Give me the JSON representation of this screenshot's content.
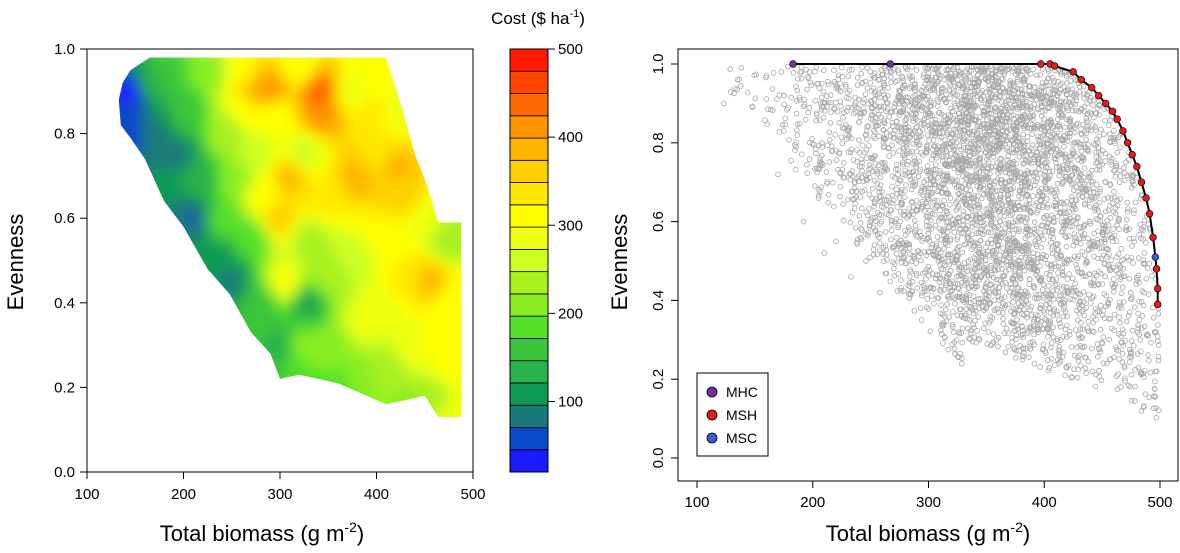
{
  "chart_data": [
    {
      "type": "heatmap",
      "xlabel": "Total biomass (g m",
      "xlabel_sup": "-2",
      "xlabel_end": ")",
      "ylabel": "Evenness",
      "xlim": [
        100,
        500
      ],
      "ylim": [
        0,
        1
      ],
      "xticks": [
        "100",
        "200",
        "300",
        "400",
        "500"
      ],
      "yticks": [
        "0.0",
        "0.2",
        "0.4",
        "0.6",
        "0.8",
        "1.0"
      ],
      "colorbar": {
        "title": "Cost ($ ha",
        "title_sup": "-1",
        "title_end": ")",
        "min": 20,
        "max": 500,
        "ticks": [
          "100",
          "200",
          "300",
          "400",
          "500"
        ],
        "tick_values": [
          100,
          200,
          300,
          400,
          500
        ],
        "bins": 19,
        "palette": [
          "#1a1aff",
          "#0a4ac8",
          "#1a7a7a",
          "#119a55",
          "#2ab14a",
          "#3ac63a",
          "#55e02a",
          "#88ee22",
          "#a8f020",
          "#ccff22",
          "#eeff11",
          "#ffff00",
          "#ffe800",
          "#ffd000",
          "#ffb400",
          "#ff9400",
          "#ff6a00",
          "#ff4400",
          "#ff1a00"
        ]
      },
      "region_boundary": [
        [
          137,
          0.92
        ],
        [
          145,
          0.95
        ],
        [
          165,
          0.98
        ],
        [
          410,
          0.98
        ],
        [
          425,
          0.87
        ],
        [
          440,
          0.75
        ],
        [
          452,
          0.68
        ],
        [
          464,
          0.59
        ],
        [
          488,
          0.59
        ],
        [
          488,
          0.13
        ],
        [
          464,
          0.13
        ],
        [
          450,
          0.18
        ],
        [
          410,
          0.16
        ],
        [
          390,
          0.18
        ],
        [
          360,
          0.21
        ],
        [
          320,
          0.23
        ],
        [
          300,
          0.22
        ],
        [
          290,
          0.28
        ],
        [
          270,
          0.33
        ],
        [
          248,
          0.42
        ],
        [
          225,
          0.48
        ],
        [
          200,
          0.58
        ],
        [
          180,
          0.64
        ],
        [
          160,
          0.74
        ],
        [
          145,
          0.79
        ],
        [
          135,
          0.82
        ],
        [
          133,
          0.88
        ]
      ],
      "cost_points": [
        [
          145,
          0.9,
          40
        ],
        [
          150,
          0.8,
          60
        ],
        [
          170,
          0.8,
          90
        ],
        [
          165,
          0.92,
          130
        ],
        [
          185,
          0.95,
          170
        ],
        [
          195,
          0.75,
          90
        ],
        [
          210,
          0.6,
          70
        ],
        [
          205,
          0.85,
          160
        ],
        [
          225,
          0.95,
          210
        ],
        [
          220,
          0.7,
          140
        ],
        [
          235,
          0.5,
          100
        ],
        [
          250,
          0.45,
          90
        ],
        [
          240,
          0.6,
          180
        ],
        [
          245,
          0.8,
          230
        ],
        [
          260,
          0.95,
          320
        ],
        [
          255,
          0.7,
          220
        ],
        [
          275,
          0.9,
          380
        ],
        [
          270,
          0.55,
          180
        ],
        [
          280,
          0.4,
          160
        ],
        [
          275,
          0.75,
          260
        ],
        [
          295,
          0.85,
          300
        ],
        [
          300,
          0.6,
          360
        ],
        [
          305,
          0.45,
          300
        ],
        [
          300,
          0.3,
          140
        ],
        [
          285,
          0.65,
          320
        ],
        [
          320,
          0.95,
          300
        ],
        [
          325,
          0.75,
          260
        ],
        [
          330,
          0.55,
          240
        ],
        [
          330,
          0.4,
          120
        ],
        [
          320,
          0.3,
          200
        ],
        [
          345,
          0.85,
          420
        ],
        [
          345,
          0.65,
          330
        ],
        [
          350,
          0.45,
          230
        ],
        [
          355,
          0.3,
          210
        ],
        [
          360,
          0.2,
          180
        ],
        [
          375,
          0.9,
          280
        ],
        [
          380,
          0.7,
          380
        ],
        [
          375,
          0.5,
          250
        ],
        [
          385,
          0.35,
          280
        ],
        [
          380,
          0.22,
          200
        ],
        [
          400,
          0.95,
          300
        ],
        [
          400,
          0.75,
          340
        ],
        [
          410,
          0.55,
          320
        ],
        [
          405,
          0.4,
          290
        ],
        [
          410,
          0.25,
          240
        ],
        [
          425,
          0.85,
          280
        ],
        [
          430,
          0.65,
          360
        ],
        [
          430,
          0.45,
          330
        ],
        [
          435,
          0.3,
          280
        ],
        [
          430,
          0.17,
          220
        ],
        [
          450,
          0.6,
          280
        ],
        [
          455,
          0.45,
          380
        ],
        [
          455,
          0.3,
          300
        ],
        [
          460,
          0.18,
          240
        ],
        [
          475,
          0.55,
          230
        ],
        [
          478,
          0.4,
          300
        ],
        [
          480,
          0.25,
          320
        ],
        [
          485,
          0.15,
          290
        ],
        [
          420,
          0.72,
          380
        ],
        [
          340,
          0.9,
          450
        ],
        [
          290,
          0.9,
          420
        ],
        [
          395,
          0.85,
          330
        ],
        [
          265,
          0.85,
          310
        ],
        [
          310,
          0.7,
          380
        ]
      ]
    },
    {
      "type": "scatter",
      "xlabel": "Total biomass (g m",
      "xlabel_sup": "-2",
      "xlabel_end": ")",
      "ylabel": "Evenness",
      "xlim": [
        100,
        500
      ],
      "ylim": [
        0,
        1
      ],
      "xticks": [
        "100",
        "200",
        "300",
        "400",
        "500"
      ],
      "yticks": [
        "0.0",
        "0.2",
        "0.4",
        "0.6",
        "0.8",
        "1.0"
      ],
      "cloud_color": "#a6a6a6",
      "frontier": [
        [
          183,
          1.0
        ],
        [
          267,
          1.0
        ],
        [
          397,
          1.0
        ],
        [
          405,
          1.0
        ],
        [
          409,
          0.995
        ],
        [
          425,
          0.98
        ],
        [
          432,
          0.96
        ],
        [
          441,
          0.94
        ],
        [
          447,
          0.92
        ],
        [
          453,
          0.9
        ],
        [
          459,
          0.88
        ],
        [
          463,
          0.86
        ],
        [
          468,
          0.83
        ],
        [
          472,
          0.8
        ],
        [
          476,
          0.77
        ],
        [
          480,
          0.74
        ],
        [
          484,
          0.7
        ],
        [
          488,
          0.66
        ],
        [
          491,
          0.62
        ],
        [
          494,
          0.56
        ],
        [
          496,
          0.51
        ],
        [
          497,
          0.48
        ],
        [
          498,
          0.43
        ],
        [
          498,
          0.39
        ]
      ],
      "mhc_points": [
        [
          183,
          1.0
        ],
        [
          267,
          1.0
        ]
      ],
      "msh_points": [
        [
          397,
          1.0
        ],
        [
          405,
          1.0
        ],
        [
          409,
          0.995
        ],
        [
          425,
          0.98
        ],
        [
          432,
          0.96
        ],
        [
          441,
          0.94
        ],
        [
          447,
          0.92
        ],
        [
          453,
          0.9
        ],
        [
          459,
          0.88
        ],
        [
          463,
          0.86
        ],
        [
          468,
          0.83
        ],
        [
          472,
          0.8
        ],
        [
          476,
          0.77
        ],
        [
          480,
          0.74
        ],
        [
          484,
          0.7
        ],
        [
          488,
          0.66
        ],
        [
          491,
          0.62
        ],
        [
          494,
          0.56
        ],
        [
          497,
          0.48
        ],
        [
          498,
          0.43
        ],
        [
          498,
          0.39
        ]
      ],
      "msc_points": [
        [
          496,
          0.51
        ]
      ],
      "legend": {
        "position": "bottom-left",
        "entries": [
          {
            "label": "MHC",
            "color": "#7030a0"
          },
          {
            "label": "MSH",
            "color": "#e41a1c"
          },
          {
            "label": "MSC",
            "color": "#3b5bdb"
          }
        ]
      }
    }
  ]
}
